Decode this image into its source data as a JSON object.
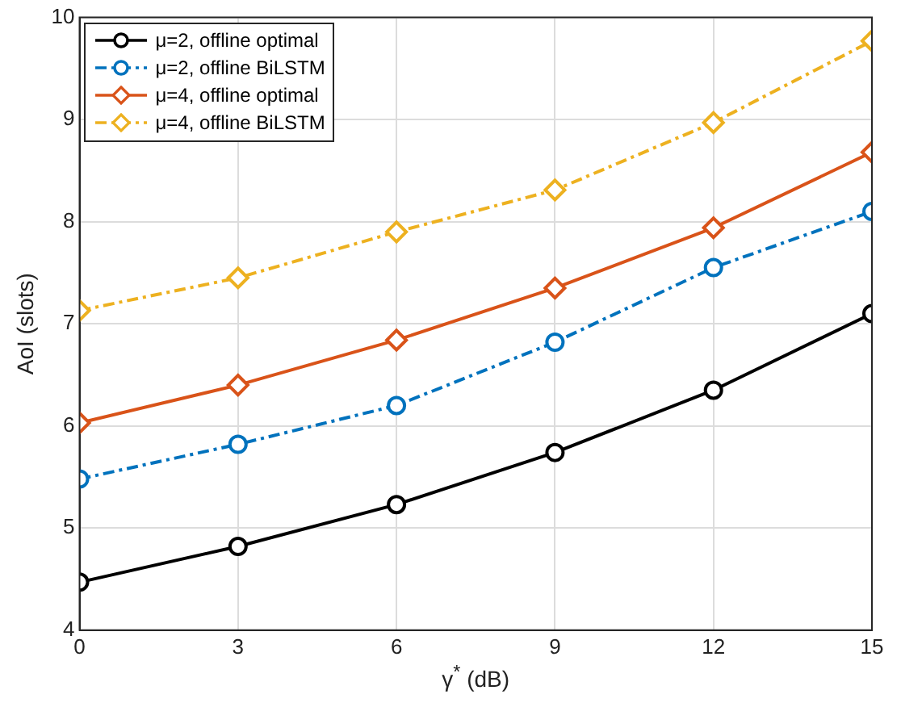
{
  "chart_data": {
    "type": "line",
    "xlabel": "γ$^{*}$ (dB)",
    "ylabel": "AoI (slots)",
    "x": [
      0,
      3,
      6,
      9,
      12,
      15
    ],
    "xlim": [
      0,
      15
    ],
    "xticks": [
      0,
      3,
      6,
      9,
      12,
      15
    ],
    "ylim": [
      4,
      10
    ],
    "yticks": [
      4,
      5,
      6,
      7,
      8,
      9,
      10
    ],
    "grid": true,
    "legend": "top left",
    "series": [
      {
        "name": "μ=2, offline optimal",
        "color": "#000000",
        "marker": "circle",
        "line_style": "solid",
        "values": [
          4.47,
          4.82,
          5.23,
          5.74,
          6.35,
          7.1
        ]
      },
      {
        "name": "μ=2, offline BiLSTM",
        "color": "#0072bd",
        "marker": "circle",
        "line_style": "dashed",
        "values": [
          5.48,
          5.82,
          6.2,
          6.82,
          7.55,
          8.1
        ]
      },
      {
        "name": "μ=4, offline optimal",
        "color": "#d95319",
        "marker": "diamond",
        "line_style": "solid",
        "values": [
          6.03,
          6.4,
          6.84,
          7.35,
          7.94,
          8.68
        ]
      },
      {
        "name": "μ=4, offline BiLSTM",
        "color": "#edb120",
        "marker": "diamond",
        "line_style": "dashed",
        "values": [
          7.13,
          7.45,
          7.9,
          8.31,
          8.97,
          9.77
        ]
      }
    ]
  }
}
